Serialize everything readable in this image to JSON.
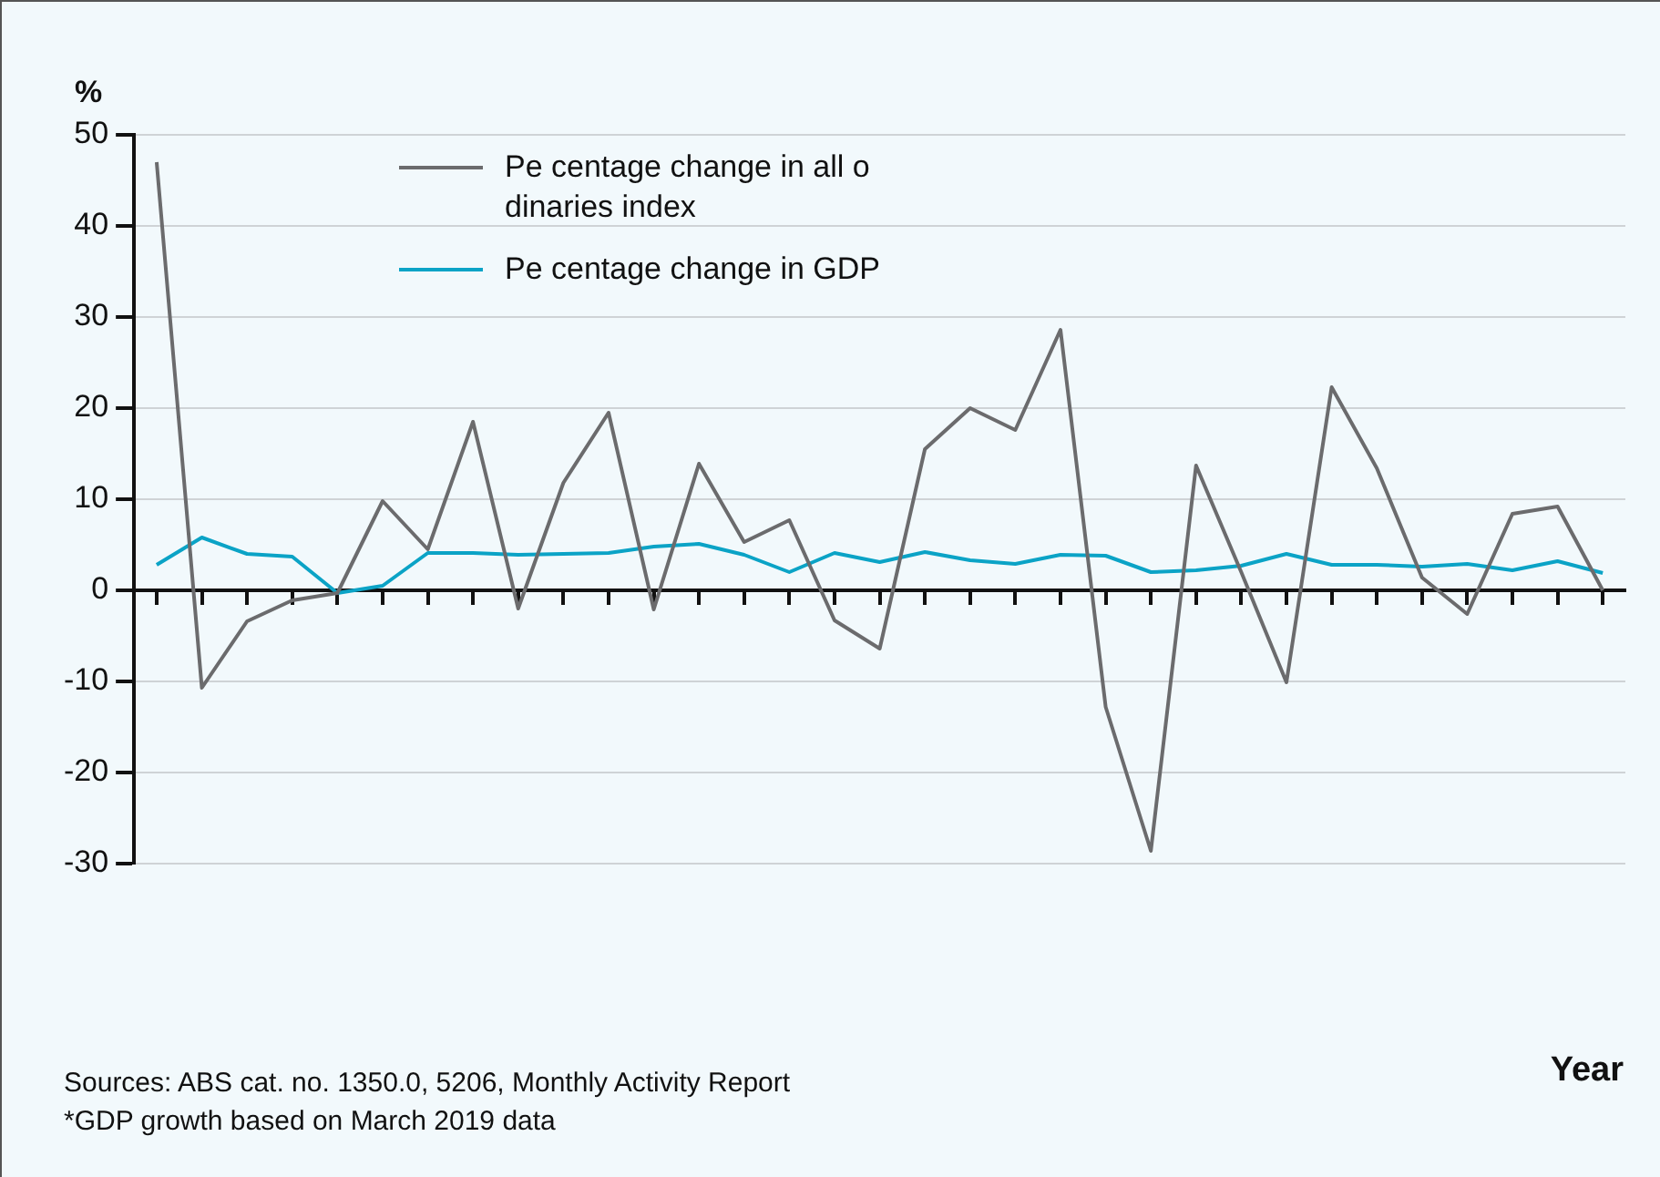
{
  "chart_data": {
    "type": "line",
    "ylabel": "%",
    "xlabel": "Year",
    "annotations": [
      "Sources: ABS cat. no. 1350.0, 5206, Monthly Activity Report",
      "*GDP growth based on March 2019 data"
    ],
    "categories": [
      null,
      null,
      null,
      null,
      null,
      null,
      null,
      null,
      null,
      null,
      null,
      null,
      null,
      null,
      null,
      null,
      null,
      null,
      null,
      null,
      null,
      null,
      null,
      null,
      null,
      null,
      null,
      null,
      null,
      null,
      null,
      null,
      null
    ],
    "series": [
      {
        "name": "Pe centage change in all o dinaries index",
        "color": "#6b6b6d",
        "values": [
          47,
          -10.7,
          -3.4,
          -1.1,
          -0.3,
          9.8,
          4.5,
          18.5,
          -2,
          11.8,
          19.5,
          -2.1,
          13.9,
          5.3,
          7.7,
          -3.3,
          -6.4,
          15.5,
          20,
          17.6,
          28.6,
          -12.8,
          -28.6,
          13.7,
          2,
          -10.1,
          22.3,
          13.4,
          1.4,
          -2.6,
          8.4,
          9.2,
          0
        ]
      },
      {
        "name": "Pe centage change in GDP",
        "color": "#0ba3c6",
        "values": [
          2.8,
          5.8,
          4,
          3.7,
          -0.3,
          0.5,
          4.1,
          4.1,
          3.9,
          4,
          4.1,
          4.8,
          5.1,
          3.9,
          2,
          4.1,
          3.1,
          4.2,
          3.3,
          2.9,
          3.9,
          3.8,
          2,
          2.2,
          2.7,
          4,
          2.8,
          2.8,
          2.6,
          2.9,
          2.2,
          3.2,
          1.9
        ]
      }
    ],
    "ylim": [
      -30,
      50
    ],
    "yticks": [
      -30,
      -20,
      -10,
      0,
      10,
      20,
      30,
      40,
      50
    ],
    "grid": "y",
    "legend": "top left",
    "marker": "none",
    "line_style": "solid"
  }
}
